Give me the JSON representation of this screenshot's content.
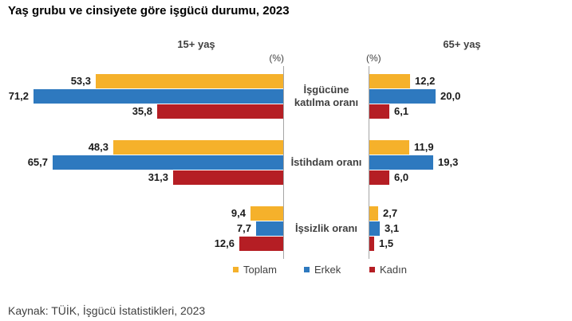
{
  "title": "Yaş grubu ve cinsiyete göre işgücü durumu, 2023",
  "source_note": "Kaynak: TÜİK, İşgücü İstatistikleri, 2023",
  "chart_data": {
    "type": "bar",
    "orientation": "horizontal",
    "title": "Yaş grubu ve cinsiyete göre işgücü durumu, 2023",
    "unit_label": "(%)",
    "value_label_format": "decimal-comma",
    "grid": false,
    "legend_position": "bottom",
    "categories": [
      "İşgücüne katılma oranı",
      "İstihdam oranı",
      "İşsizlik oranı"
    ],
    "panels": [
      {
        "label": "15+ yaş",
        "side": "left",
        "xlim": [
          0,
          80
        ],
        "series": [
          {
            "name": "Toplam",
            "color": "#F5B12B",
            "values": [
              53.3,
              48.3,
              9.4
            ]
          },
          {
            "name": "Erkek",
            "color": "#2E79BF",
            "values": [
              71.2,
              65.7,
              7.7
            ]
          },
          {
            "name": "Kadın",
            "color": "#B51E24",
            "values": [
              35.8,
              31.3,
              12.6
            ]
          }
        ]
      },
      {
        "label": "65+ yaş",
        "side": "right",
        "xlim": [
          0,
          60
        ],
        "series": [
          {
            "name": "Toplam",
            "color": "#F5B12B",
            "values": [
              12.2,
              11.9,
              2.7
            ]
          },
          {
            "name": "Erkek",
            "color": "#2E79BF",
            "values": [
              20.0,
              19.3,
              3.1
            ]
          },
          {
            "name": "Kadın",
            "color": "#B51E24",
            "values": [
              6.1,
              6.0,
              1.5
            ]
          }
        ]
      }
    ],
    "legend": [
      {
        "label": "Toplam",
        "color": "#F5B12B"
      },
      {
        "label": "Erkek",
        "color": "#2E79BF"
      },
      {
        "label": "Kadın",
        "color": "#B51E24"
      }
    ]
  }
}
